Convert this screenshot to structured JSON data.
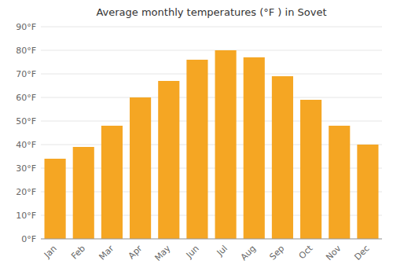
{
  "chart_data": {
    "type": "bar",
    "title": "Average monthly temperatures (°F ) in Sovet",
    "categories": [
      "Jan",
      "Feb",
      "Mar",
      "Apr",
      "May",
      "Jun",
      "Jul",
      "Aug",
      "Sep",
      "Oct",
      "Nov",
      "Dec"
    ],
    "values": [
      34,
      39,
      48,
      60,
      67,
      76,
      80,
      77,
      69,
      59,
      48,
      40
    ],
    "color": "#F5A623",
    "ylim": [
      0,
      90
    ],
    "yticks": [
      {
        "value": 0,
        "label": "0°F"
      },
      {
        "value": 10,
        "label": "10°F"
      },
      {
        "value": 20,
        "label": "20°F"
      },
      {
        "value": 30,
        "label": "30°F"
      },
      {
        "value": 40,
        "label": "40°F"
      },
      {
        "value": 50,
        "label": "50°F"
      },
      {
        "value": 60,
        "label": "60°F"
      },
      {
        "value": 70,
        "label": "70°F"
      },
      {
        "value": 80,
        "label": "80°F"
      },
      {
        "value": 90,
        "label": "90°F"
      }
    ],
    "grid": true
  }
}
